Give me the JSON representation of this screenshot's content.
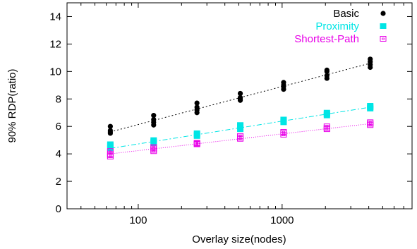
{
  "chart_data": {
    "type": "scatter",
    "xlabel": "Overlay size(nodes)",
    "ylabel": "90% RDP(ratio)",
    "xscale": "log",
    "xlim": [
      32,
      8000
    ],
    "ylim": [
      0,
      15
    ],
    "x_ticks": [
      100,
      1000
    ],
    "x_tick_labels": [
      "100",
      "1000"
    ],
    "y_ticks": [
      0,
      2,
      4,
      6,
      8,
      10,
      12,
      14
    ],
    "y_tick_labels": [
      "0",
      "2",
      "4",
      "6",
      "8",
      "10",
      "12",
      "14"
    ],
    "grid": false,
    "legend_position": "top-right",
    "series": [
      {
        "name": "Basic",
        "color": "#000000",
        "marker": "circle",
        "points": [
          [
            64,
            5.5
          ],
          [
            64,
            5.6
          ],
          [
            64,
            5.7
          ],
          [
            64,
            6.0
          ],
          [
            128,
            6.1
          ],
          [
            128,
            6.3
          ],
          [
            128,
            6.5
          ],
          [
            128,
            6.8
          ],
          [
            256,
            7.0
          ],
          [
            256,
            7.2
          ],
          [
            256,
            7.4
          ],
          [
            256,
            7.7
          ],
          [
            512,
            7.9
          ],
          [
            512,
            8.0
          ],
          [
            512,
            8.1
          ],
          [
            512,
            8.4
          ],
          [
            1024,
            8.7
          ],
          [
            1024,
            8.9
          ],
          [
            1024,
            9.0
          ],
          [
            1024,
            9.2
          ],
          [
            2048,
            9.5
          ],
          [
            2048,
            9.7
          ],
          [
            2048,
            10.0
          ],
          [
            2048,
            10.1
          ],
          [
            4096,
            10.3
          ],
          [
            4096,
            10.5
          ],
          [
            4096,
            10.7
          ],
          [
            4096,
            10.9
          ]
        ],
        "fit": [
          [
            64,
            5.6
          ],
          [
            4096,
            10.6
          ]
        ]
      },
      {
        "name": "Proximity",
        "color": "#00e5e5",
        "marker": "square",
        "points": [
          [
            64,
            4.4
          ],
          [
            64,
            4.6
          ],
          [
            64,
            4.7
          ],
          [
            128,
            4.8
          ],
          [
            128,
            4.9
          ],
          [
            128,
            5.0
          ],
          [
            256,
            5.3
          ],
          [
            256,
            5.4
          ],
          [
            256,
            5.5
          ],
          [
            512,
            5.8
          ],
          [
            512,
            6.0
          ],
          [
            512,
            6.1
          ],
          [
            1024,
            6.3
          ],
          [
            1024,
            6.4
          ],
          [
            1024,
            6.5
          ],
          [
            2048,
            6.8
          ],
          [
            2048,
            6.9
          ],
          [
            2048,
            7.0
          ],
          [
            4096,
            7.3
          ],
          [
            4096,
            7.4
          ],
          [
            4096,
            7.5
          ]
        ],
        "fit": [
          [
            64,
            4.4
          ],
          [
            4096,
            7.4
          ]
        ]
      },
      {
        "name": "Shortest-Path",
        "color": "#e800e8",
        "marker": "square-open",
        "points": [
          [
            64,
            3.8
          ],
          [
            64,
            3.9
          ],
          [
            64,
            4.0
          ],
          [
            64,
            4.2
          ],
          [
            128,
            4.2
          ],
          [
            128,
            4.3
          ],
          [
            128,
            4.4
          ],
          [
            128,
            4.5
          ],
          [
            256,
            4.7
          ],
          [
            256,
            4.75
          ],
          [
            256,
            4.8
          ],
          [
            512,
            5.1
          ],
          [
            512,
            5.2
          ],
          [
            512,
            5.3
          ],
          [
            1024,
            5.4
          ],
          [
            1024,
            5.5
          ],
          [
            1024,
            5.6
          ],
          [
            2048,
            5.8
          ],
          [
            2048,
            5.9
          ],
          [
            2048,
            6.0
          ],
          [
            4096,
            6.1
          ],
          [
            4096,
            6.2
          ],
          [
            4096,
            6.3
          ]
        ],
        "fit": [
          [
            64,
            4.0
          ],
          [
            4096,
            6.2
          ]
        ]
      }
    ]
  }
}
